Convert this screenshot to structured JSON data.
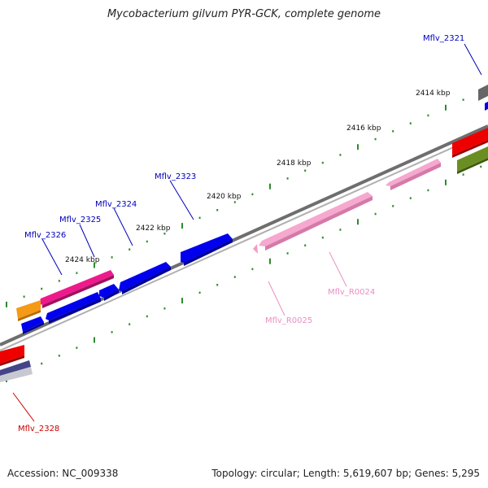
{
  "title": "Mycobacterium gilvum PYR-GCK, complete genome",
  "footer": {
    "accession": "Accession: NC_009338",
    "summary": "Topology: circular; Length: 5,619,607 bp; Genes: 5,295"
  },
  "colors": {
    "backbone": "#8a8a8a",
    "ticks": "#2e8b2e",
    "blue_gene": "#0000ee",
    "magenta_gene": "#ee1a8c",
    "pink_gene": "#f39bc8",
    "red_gene": "#ee0000",
    "orange_gene": "#f59a16",
    "olive_gene": "#6b8e23",
    "label_blue": "#0000bb",
    "label_pink": "#e98fc0",
    "label_red": "#cc0000"
  },
  "scale_labels": [
    "2414 kbp",
    "2416 kbp",
    "2418 kbp",
    "2420 kbp",
    "2422 kbp",
    "2424 kbp"
  ],
  "gene_labels": [
    {
      "text": "Mflv_2321",
      "color": "label_blue"
    },
    {
      "text": "Mflv_2323",
      "color": "label_blue"
    },
    {
      "text": "Mflv_2324",
      "color": "label_blue"
    },
    {
      "text": "Mflv_2325",
      "color": "label_blue"
    },
    {
      "text": "Mflv_2326",
      "color": "label_blue"
    },
    {
      "text": "Mflv_R0024",
      "color": "label_pink"
    },
    {
      "text": "Mflv_R0025",
      "color": "label_pink"
    },
    {
      "text": "Mflv_2328",
      "color": "label_red"
    }
  ]
}
